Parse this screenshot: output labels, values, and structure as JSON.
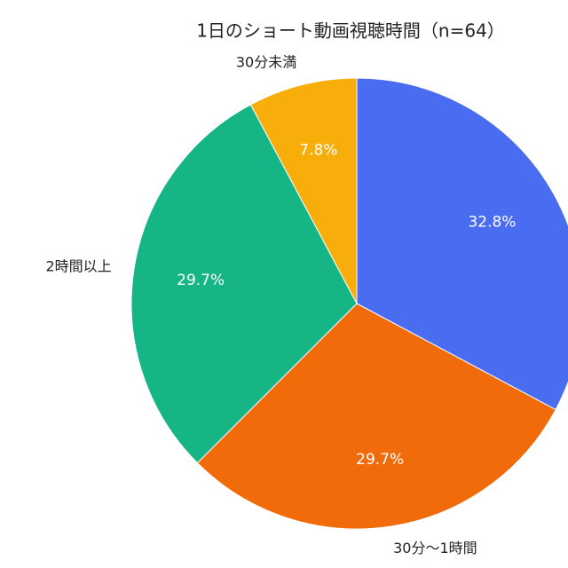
{
  "chart_data": {
    "type": "pie",
    "title": "1日のショート動画視聴時間（n=64）",
    "categories": [
      null,
      "30分〜1時間",
      "2時間以上",
      "30分未満"
    ],
    "values": [
      32.8,
      29.7,
      29.7,
      7.8
    ],
    "value_labels": [
      "32.8%",
      "29.7%",
      "29.7%",
      "7.8%"
    ],
    "colors": [
      "#4a6cf0",
      "#f26b0a",
      "#16b585",
      "#f7ae0a"
    ]
  }
}
